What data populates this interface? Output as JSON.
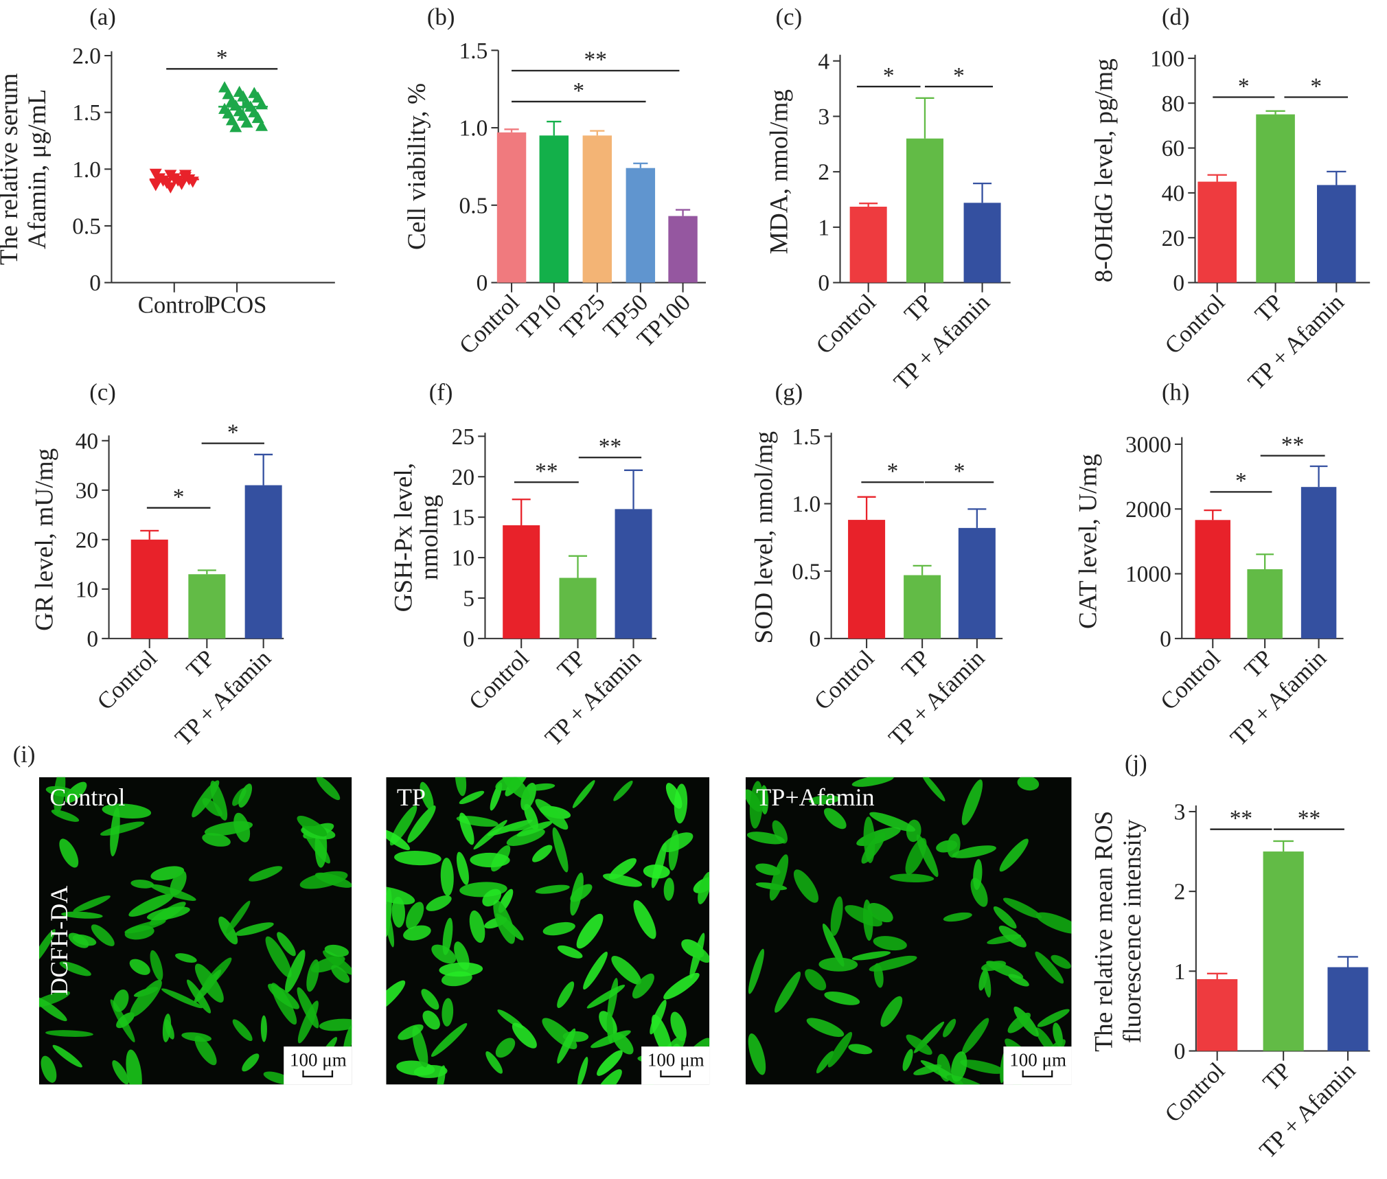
{
  "chart_data": [
    {
      "panel": "(a)",
      "type": "scatter",
      "ylabel": [
        "The relative serum",
        "Afamin, μg/mL"
      ],
      "ylim": [
        0,
        2
      ],
      "yticks": [
        "0",
        "0.5",
        "1.0",
        "1.5",
        "2.0"
      ],
      "categories": [
        "Control",
        "PCOS"
      ],
      "series": [
        {
          "name": "Control",
          "mean": 0.91,
          "sd": 0.05,
          "color": "#E8222A",
          "marker": "triangle-down",
          "points": [
            0.96,
            0.95,
            0.93,
            0.92,
            0.92,
            0.91,
            0.9,
            0.9,
            0.89,
            0.88,
            0.87,
            0.86,
            0.84,
            0.95
          ]
        },
        {
          "name": "PCOS",
          "mean": 1.55,
          "sd": 0.09,
          "color": "#1DA84A",
          "marker": "triangle-up",
          "points": [
            1.72,
            1.68,
            1.67,
            1.66,
            1.64,
            1.63,
            1.6,
            1.58,
            1.57,
            1.56,
            1.55,
            1.53,
            1.51,
            1.5,
            1.49,
            1.47,
            1.45,
            1.43,
            1.41,
            1.38,
            1.37
          ]
        }
      ],
      "significance": [
        {
          "from": 0,
          "to": 1,
          "label": "*"
        }
      ]
    },
    {
      "panel": "(b)",
      "type": "bar",
      "ylabel": [
        "Cell viability, %"
      ],
      "ylim": [
        0,
        1.5
      ],
      "yticks": [
        "0",
        "0.5",
        "1.0",
        "1.5"
      ],
      "categories": [
        "Control",
        "TP10",
        "TP25",
        "TP50",
        "TP100"
      ],
      "values": [
        0.97,
        0.95,
        0.95,
        0.74,
        0.43
      ],
      "errors": [
        0.02,
        0.09,
        0.03,
        0.03,
        0.04
      ],
      "colors": [
        "#F07A7E",
        "#13B04A",
        "#F3B475",
        "#6095CF",
        "#9557A0"
      ],
      "significance": [
        {
          "from": 0,
          "to": 3,
          "label": "*"
        },
        {
          "from": 0,
          "to": 4,
          "label": "**"
        }
      ]
    },
    {
      "panel": "(c)",
      "type": "bar",
      "ylabel": [
        "MDA, nmol/mg"
      ],
      "ylim": [
        0,
        4
      ],
      "yticks": [
        "0",
        "1",
        "2",
        "3",
        "4"
      ],
      "categories": [
        "Control",
        "TP",
        "TP + Afamin"
      ],
      "values": [
        1.37,
        2.6,
        1.44
      ],
      "errors": [
        0.06,
        0.73,
        0.35
      ],
      "colors": [
        "#EE3B3F",
        "#62BB46",
        "#3450A0"
      ],
      "significance": [
        {
          "from": 0,
          "to": 1,
          "label": "*"
        },
        {
          "from": 1,
          "to": 2,
          "label": "*"
        }
      ]
    },
    {
      "panel": "(d)",
      "type": "bar",
      "ylabel": [
        "8-OHdG level, pg/mg"
      ],
      "ylim": [
        0,
        100
      ],
      "yticks": [
        "0",
        "20",
        "40",
        "60",
        "80",
        "100"
      ],
      "categories": [
        "Control",
        "TP",
        "TP + Afamin"
      ],
      "values": [
        45,
        75,
        43.5
      ],
      "errors": [
        3,
        1.5,
        6
      ],
      "colors": [
        "#EE3B3F",
        "#62BB46",
        "#3450A0"
      ],
      "significance": [
        {
          "from": 0,
          "to": 1,
          "label": "*"
        },
        {
          "from": 1,
          "to": 2,
          "label": "*"
        }
      ]
    },
    {
      "panel": "(c)",
      "type": "bar",
      "ylabel": [
        "GR level, mU/mg"
      ],
      "ylim": [
        0,
        40
      ],
      "yticks": [
        "0",
        "10",
        "20",
        "30",
        "40"
      ],
      "categories": [
        "Control",
        "TP",
        "TP + Afamin"
      ],
      "values": [
        20,
        13,
        31
      ],
      "errors": [
        1.8,
        0.8,
        6.2
      ],
      "colors": [
        "#E8222A",
        "#62BB46",
        "#3450A0"
      ],
      "significance": [
        {
          "from": 0,
          "to": 1,
          "label": "*"
        },
        {
          "from": 1,
          "to": 2,
          "label": "*"
        }
      ]
    },
    {
      "panel": "(f)",
      "type": "bar",
      "ylabel": [
        "GSH-Px level,",
        "nmolmg"
      ],
      "ylim": [
        0,
        25
      ],
      "yticks": [
        "0",
        "5",
        "10",
        "15",
        "20",
        "25"
      ],
      "categories": [
        "Control",
        "TP",
        "TP + Afamin"
      ],
      "values": [
        14,
        7.5,
        16
      ],
      "errors": [
        3.2,
        2.7,
        4.8
      ],
      "colors": [
        "#E8222A",
        "#62BB46",
        "#3450A0"
      ],
      "significance": [
        {
          "from": 0,
          "to": 1,
          "label": "**"
        },
        {
          "from": 1,
          "to": 2,
          "label": "**"
        }
      ]
    },
    {
      "panel": "(g)",
      "type": "bar",
      "ylabel": [
        "SOD level, nmol/mg"
      ],
      "ylim": [
        0,
        1.5
      ],
      "yticks": [
        "0",
        "0.5",
        "1.0",
        "1.5"
      ],
      "categories": [
        "Control",
        "TP",
        "TP + Afamin"
      ],
      "values": [
        0.88,
        0.47,
        0.82
      ],
      "errors": [
        0.17,
        0.07,
        0.14
      ],
      "colors": [
        "#E8222A",
        "#62BB46",
        "#3450A0"
      ],
      "significance": [
        {
          "from": 0,
          "to": 1,
          "label": "*"
        },
        {
          "from": 1,
          "to": 2,
          "label": "*"
        }
      ]
    },
    {
      "panel": "(h)",
      "type": "bar",
      "ylabel": [
        "CAT level, U/mg"
      ],
      "ylim": [
        0,
        3000
      ],
      "yticks": [
        "0",
        "1000",
        "2000",
        "3000"
      ],
      "categories": [
        "Control",
        "TP",
        "TP + Afamin"
      ],
      "values": [
        1830,
        1070,
        2340
      ],
      "errors": [
        150,
        230,
        320
      ],
      "colors": [
        "#E8222A",
        "#62BB46",
        "#3450A0"
      ],
      "significance": [
        {
          "from": 0,
          "to": 1,
          "label": "*"
        },
        {
          "from": 1,
          "to": 2,
          "label": "**"
        }
      ]
    },
    {
      "panel": "(j)",
      "type": "bar",
      "ylabel": [
        "The relative mean ROS",
        "fluorescence intensity"
      ],
      "ylim": [
        0,
        3
      ],
      "yticks": [
        "0",
        "1",
        "2",
        "3"
      ],
      "categories": [
        "Control",
        "TP",
        "TP + Afamin"
      ],
      "values": [
        0.9,
        2.5,
        1.05
      ],
      "errors": [
        0.07,
        0.13,
        0.13
      ],
      "colors": [
        "#EE3B3F",
        "#62BB46",
        "#3450A0"
      ],
      "significance": [
        {
          "from": 0,
          "to": 1,
          "label": "**"
        },
        {
          "from": 1,
          "to": 2,
          "label": "**"
        }
      ]
    }
  ],
  "micrographs": {
    "panel": "(i)",
    "stain_label": "DCFH-DA",
    "scale_bar": "100 μm",
    "images": [
      {
        "label": "Control",
        "cell_density": 0.8,
        "brightness": 0.75
      },
      {
        "label": "TP",
        "cell_density": 1.0,
        "brightness": 1.0
      },
      {
        "label": "TP+Afamin",
        "cell_density": 0.75,
        "brightness": 0.7
      }
    ]
  }
}
